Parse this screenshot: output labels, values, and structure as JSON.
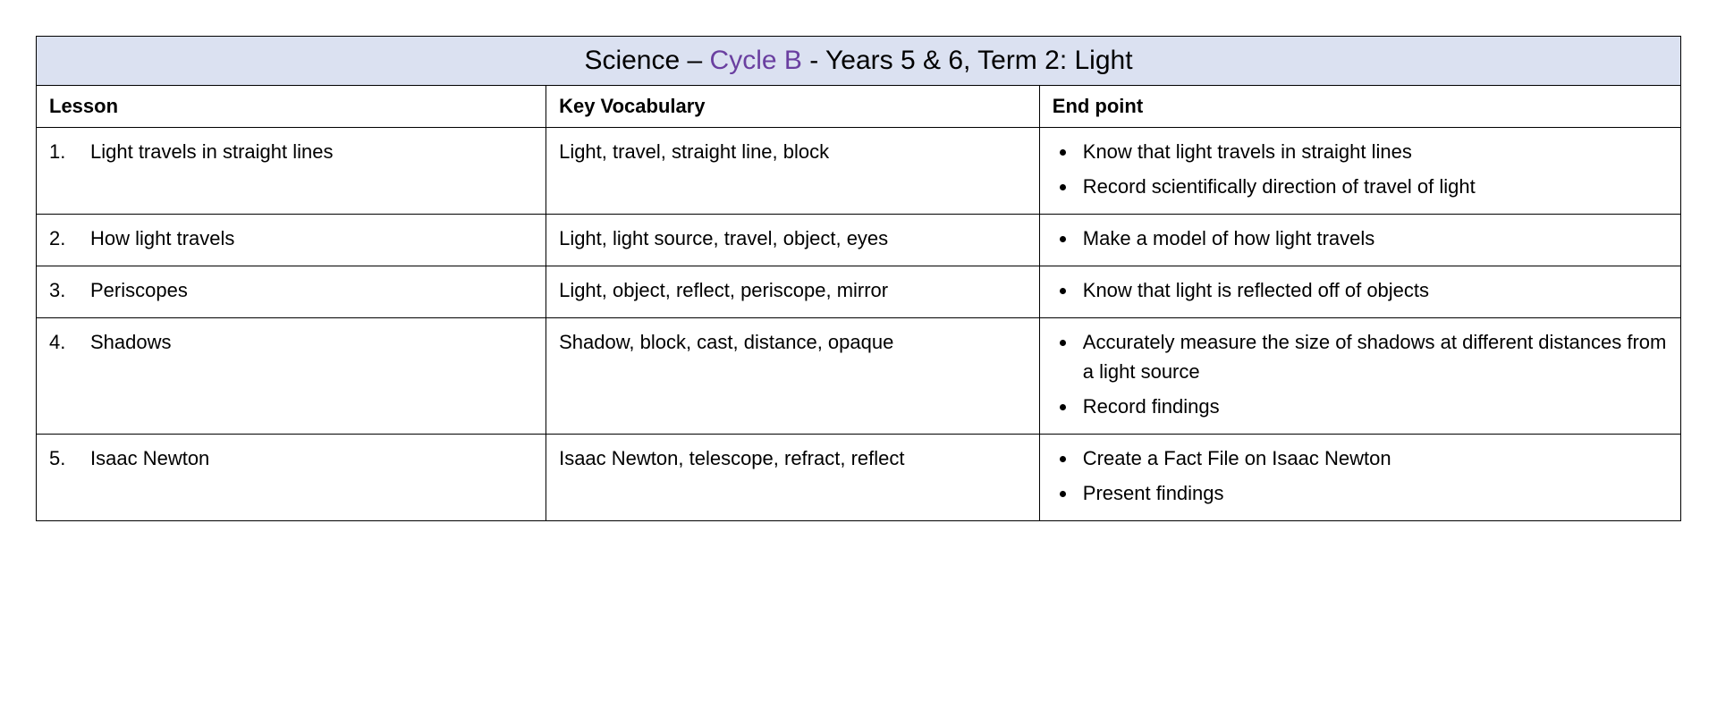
{
  "title": {
    "prefix": "Science – ",
    "cycle": "Cycle B",
    "suffix": " - Years 5 & 6, Term 2: Light"
  },
  "columns": {
    "lesson": "Lesson",
    "vocab": "Key Vocabulary",
    "endpoint": "End point"
  },
  "styling": {
    "title_bg": "#dbe1f1",
    "cycle_color": "#6a3fa0",
    "border_color": "#000000",
    "font_family": "Comic Sans MS",
    "title_fontsize": 30,
    "header_fontsize": 22,
    "cell_fontsize": 22,
    "column_widths_pct": [
      31,
      30,
      39
    ]
  },
  "rows": [
    {
      "num": "1.",
      "lesson": "Light travels in straight lines",
      "vocab": "Light, travel, straight line, block",
      "endpoints": [
        "Know that light travels in straight lines",
        "Record scientifically direction of travel of light"
      ]
    },
    {
      "num": "2.",
      "lesson": "How light travels",
      "vocab": "Light, light source, travel, object, eyes",
      "endpoints": [
        "Make a model of how light travels"
      ]
    },
    {
      "num": "3.",
      "lesson": "Periscopes",
      "vocab": "Light, object, reflect, periscope, mirror",
      "endpoints": [
        "Know that light is reflected off of objects"
      ]
    },
    {
      "num": "4.",
      "lesson": "Shadows",
      "vocab": "Shadow, block, cast, distance, opaque",
      "endpoints": [
        "Accurately measure the size of shadows at different distances from a light source",
        "Record findings"
      ]
    },
    {
      "num": "5.",
      "lesson": "Isaac Newton",
      "vocab": "Isaac Newton, telescope, refract, reflect",
      "endpoints": [
        "Create a Fact File on Isaac Newton",
        "Present findings"
      ]
    }
  ]
}
